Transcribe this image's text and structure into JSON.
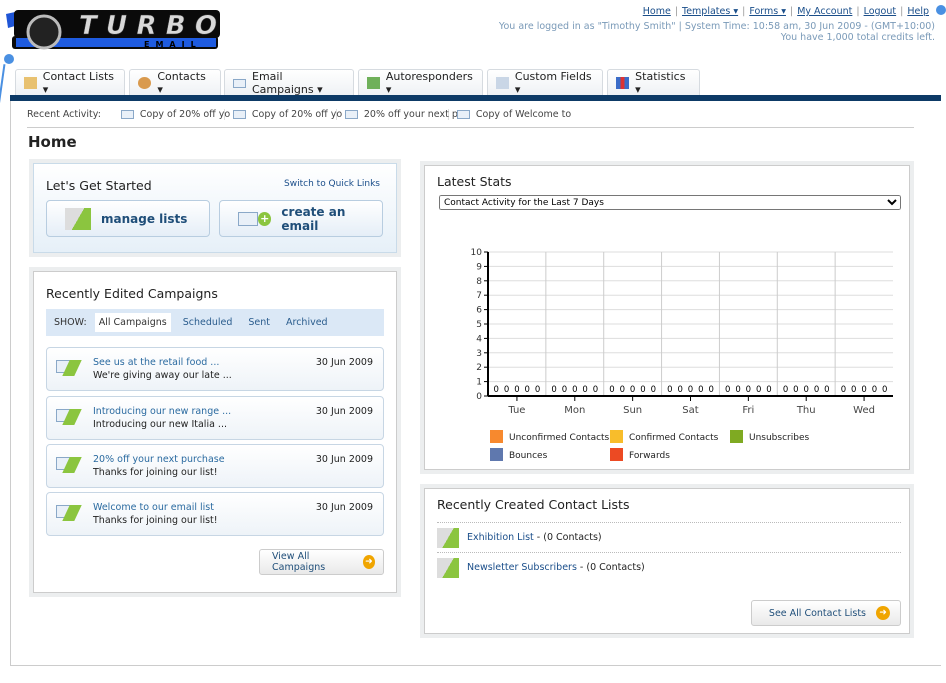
{
  "logo": {
    "text": "TURBO",
    "sub": "EMAIL"
  },
  "top_links": [
    "Home",
    "Templates ▾",
    "Forms ▾",
    "My Account",
    "Logout",
    "Help"
  ],
  "login_info": "You are logged in as \"Timothy Smith\" | System Time: 10:58 am, 30 Jun 2009 - (GMT+10:00)",
  "credits": "You have 1,000 total credits left.",
  "tabs": [
    {
      "label": "Contact Lists ▾",
      "icon": "folder-users-icon"
    },
    {
      "label": "Contacts ▾",
      "icon": "users-icon"
    },
    {
      "label": "Email Campaigns ▾",
      "icon": "envelope-icon"
    },
    {
      "label": "Autoresponders ▾",
      "icon": "auto-envelope-icon"
    },
    {
      "label": "Custom Fields ▾",
      "icon": "document-icon"
    },
    {
      "label": "Statistics ▾",
      "icon": "bar-chart-icon"
    }
  ],
  "recent_activity": {
    "label": "Recent Activity:",
    "items": [
      "Copy of 20% off yo",
      "Copy of 20% off yo",
      "20% off your next p",
      "Copy of Welcome to"
    ]
  },
  "page_title": "Home",
  "get_started": {
    "title": "Let's Get Started",
    "switch": "Switch to Quick Links",
    "manage": "manage lists",
    "create": "create an email"
  },
  "campaigns": {
    "title": "Recently Edited Campaigns",
    "show": "SHOW:",
    "filters": [
      "All Campaigns",
      "Scheduled",
      "Sent",
      "Archived"
    ],
    "items": [
      {
        "name": "See us at the retail food ...",
        "desc": "We're giving away our late ...",
        "date": "30 Jun 2009"
      },
      {
        "name": "Introducing our new range ...",
        "desc": "Introducing our new Italia ...",
        "date": "30 Jun 2009"
      },
      {
        "name": "20% off your next purchase",
        "desc": "Thanks for joining our list!",
        "date": "30 Jun 2009"
      },
      {
        "name": "Welcome to our email list",
        "desc": "Thanks for joining our list!",
        "date": "30 Jun 2009"
      }
    ],
    "view_all": "View All Campaigns"
  },
  "stats": {
    "title": "Latest Stats",
    "select": "Contact Activity for the Last 7 Days"
  },
  "chart_data": {
    "type": "bar",
    "categories": [
      "Tue",
      "Mon",
      "Sun",
      "Sat",
      "Fri",
      "Thu",
      "Wed"
    ],
    "ylim": [
      0,
      10
    ],
    "yticks": [
      0,
      1,
      2,
      3,
      4,
      5,
      6,
      7,
      8,
      9,
      10
    ],
    "grid": true,
    "legend": "bottom",
    "series": [
      {
        "name": "Unconfirmed Contacts",
        "color": "#f7892e",
        "values": [
          0,
          0,
          0,
          0,
          0,
          0,
          0
        ]
      },
      {
        "name": "Confirmed Contacts",
        "color": "#f8bd2b",
        "values": [
          0,
          0,
          0,
          0,
          0,
          0,
          0
        ]
      },
      {
        "name": "Unsubscribes",
        "color": "#7faa22",
        "values": [
          0,
          0,
          0,
          0,
          0,
          0,
          0
        ]
      },
      {
        "name": "Bounces",
        "color": "#5f78ae",
        "values": [
          0,
          0,
          0,
          0,
          0,
          0,
          0
        ]
      },
      {
        "name": "Forwards",
        "color": "#ec4a23",
        "values": [
          0,
          0,
          0,
          0,
          0,
          0,
          0
        ]
      }
    ]
  },
  "contact_lists": {
    "title": "Recently Created Contact Lists",
    "items": [
      {
        "name": "Exhibition List",
        "count": " - (0 Contacts)"
      },
      {
        "name": "Newsletter Subscribers",
        "count": " - (0 Contacts)"
      }
    ],
    "see_all": "See All Contact Lists"
  }
}
